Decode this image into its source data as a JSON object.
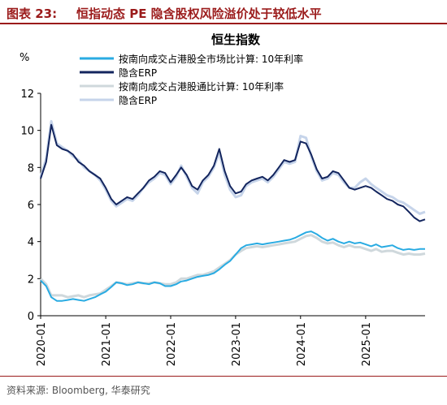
{
  "figure": {
    "label": "图表 23:",
    "title": "恒指动态 PE 隐含股权风险溢价处于较低水平",
    "source": "资料来源: Bloomberg, 华泰研究"
  },
  "chart_data": {
    "type": "line",
    "title": "恒生指数",
    "ylabel": "%",
    "ylim": [
      0,
      12
    ],
    "yticks": [
      0,
      2,
      4,
      6,
      8,
      10,
      12
    ],
    "xlim": [
      "2020-01-01",
      "2025-12-01"
    ],
    "xticks": [
      "2020-01",
      "2021-01",
      "2022-01",
      "2023-01",
      "2024-01",
      "2025-01"
    ],
    "grid": false,
    "legend": "top",
    "series": [
      {
        "name": "按南向成交占港股全市场比计算: 10年利率",
        "color": "#29abe2",
        "x": [
          "2020-01-01",
          "2020-02-01",
          "2020-03-01",
          "2020-04-01",
          "2020-05-01",
          "2020-06-01",
          "2020-07-01",
          "2020-08-01",
          "2020-09-01",
          "2020-10-01",
          "2020-11-01",
          "2020-12-01",
          "2021-01-01",
          "2021-02-01",
          "2021-03-01",
          "2021-04-01",
          "2021-05-01",
          "2021-06-01",
          "2021-07-01",
          "2021-08-01",
          "2021-09-01",
          "2021-10-01",
          "2021-11-01",
          "2021-12-01",
          "2022-01-01",
          "2022-02-01",
          "2022-03-01",
          "2022-04-01",
          "2022-05-01",
          "2022-06-01",
          "2022-07-01",
          "2022-08-01",
          "2022-09-01",
          "2022-10-01",
          "2022-11-01",
          "2022-12-01",
          "2023-01-01",
          "2023-02-01",
          "2023-03-01",
          "2023-04-01",
          "2023-05-01",
          "2023-06-01",
          "2023-07-01",
          "2023-08-01",
          "2023-09-01",
          "2023-10-01",
          "2023-11-01",
          "2023-12-01",
          "2024-01-01",
          "2024-02-01",
          "2024-03-01",
          "2024-04-01",
          "2024-05-01",
          "2024-06-01",
          "2024-07-01",
          "2024-08-01",
          "2024-09-01",
          "2024-10-01",
          "2024-11-01",
          "2024-12-01",
          "2025-01-01",
          "2025-02-01",
          "2025-03-01",
          "2025-04-01",
          "2025-05-01",
          "2025-06-01",
          "2025-07-01",
          "2025-08-01",
          "2025-09-01",
          "2025-10-01",
          "2025-11-01",
          "2025-12-01"
        ],
        "values": [
          1.9,
          1.6,
          1.0,
          0.8,
          0.8,
          0.85,
          0.9,
          0.85,
          0.8,
          0.9,
          1.0,
          1.15,
          1.3,
          1.55,
          1.8,
          1.75,
          1.65,
          1.7,
          1.8,
          1.75,
          1.7,
          1.8,
          1.75,
          1.6,
          1.6,
          1.7,
          1.85,
          1.9,
          2.0,
          2.1,
          2.15,
          2.2,
          2.3,
          2.5,
          2.75,
          2.95,
          3.3,
          3.65,
          3.8,
          3.85,
          3.9,
          3.85,
          3.9,
          3.95,
          4.0,
          4.05,
          4.1,
          4.2,
          4.35,
          4.5,
          4.55,
          4.4,
          4.2,
          4.05,
          4.15,
          4.0,
          3.9,
          4.0,
          3.9,
          3.95,
          3.85,
          3.75,
          3.85,
          3.7,
          3.75,
          3.8,
          3.65,
          3.55,
          3.6,
          3.55,
          3.6,
          3.6
        ]
      },
      {
        "name": "隐含ERP",
        "color": "#13255e",
        "x": [
          "2020-01-01",
          "2020-02-01",
          "2020-03-01",
          "2020-04-01",
          "2020-05-01",
          "2020-06-01",
          "2020-07-01",
          "2020-08-01",
          "2020-09-01",
          "2020-10-01",
          "2020-11-01",
          "2020-12-01",
          "2021-01-01",
          "2021-02-01",
          "2021-03-01",
          "2021-04-01",
          "2021-05-01",
          "2021-06-01",
          "2021-07-01",
          "2021-08-01",
          "2021-09-01",
          "2021-10-01",
          "2021-11-01",
          "2021-12-01",
          "2022-01-01",
          "2022-02-01",
          "2022-03-01",
          "2022-04-01",
          "2022-05-01",
          "2022-06-01",
          "2022-07-01",
          "2022-08-01",
          "2022-09-01",
          "2022-10-01",
          "2022-11-01",
          "2022-12-01",
          "2023-01-01",
          "2023-02-01",
          "2023-03-01",
          "2023-04-01",
          "2023-05-01",
          "2023-06-01",
          "2023-07-01",
          "2023-08-01",
          "2023-09-01",
          "2023-10-01",
          "2023-11-01",
          "2023-12-01",
          "2024-01-01",
          "2024-02-01",
          "2024-03-01",
          "2024-04-01",
          "2024-05-01",
          "2024-06-01",
          "2024-07-01",
          "2024-08-01",
          "2024-09-01",
          "2024-10-01",
          "2024-11-01",
          "2024-12-01",
          "2025-01-01",
          "2025-02-01",
          "2025-03-01",
          "2025-04-01",
          "2025-05-01",
          "2025-06-01",
          "2025-07-01",
          "2025-08-01",
          "2025-09-01",
          "2025-10-01",
          "2025-11-01",
          "2025-12-01"
        ],
        "values": [
          7.4,
          8.3,
          10.3,
          9.2,
          9.0,
          8.9,
          8.7,
          8.3,
          8.1,
          7.8,
          7.6,
          7.4,
          6.9,
          6.3,
          6.0,
          6.2,
          6.4,
          6.3,
          6.6,
          6.9,
          7.3,
          7.5,
          7.8,
          7.7,
          7.2,
          7.6,
          8.0,
          7.6,
          7.0,
          6.8,
          7.3,
          7.6,
          8.1,
          9.0,
          7.8,
          7.0,
          6.6,
          6.7,
          7.1,
          7.3,
          7.4,
          7.5,
          7.3,
          7.6,
          8.0,
          8.4,
          8.3,
          8.4,
          9.4,
          9.3,
          8.7,
          7.9,
          7.4,
          7.5,
          7.8,
          7.7,
          7.3,
          6.9,
          6.8,
          6.9,
          7.0,
          6.9,
          6.7,
          6.5,
          6.3,
          6.2,
          6.0,
          5.9,
          5.6,
          5.3,
          5.1,
          5.2
        ]
      },
      {
        "name": "按南向成交占港股通比计算: 10年利率",
        "color": "#cfd8dc",
        "x": [
          "2020-01-01",
          "2020-02-01",
          "2020-03-01",
          "2020-04-01",
          "2020-05-01",
          "2020-06-01",
          "2020-07-01",
          "2020-08-01",
          "2020-09-01",
          "2020-10-01",
          "2020-11-01",
          "2020-12-01",
          "2021-01-01",
          "2021-02-01",
          "2021-03-01",
          "2021-04-01",
          "2021-05-01",
          "2021-06-01",
          "2021-07-01",
          "2021-08-01",
          "2021-09-01",
          "2021-10-01",
          "2021-11-01",
          "2021-12-01",
          "2022-01-01",
          "2022-02-01",
          "2022-03-01",
          "2022-04-01",
          "2022-05-01",
          "2022-06-01",
          "2022-07-01",
          "2022-08-01",
          "2022-09-01",
          "2022-10-01",
          "2022-11-01",
          "2022-12-01",
          "2023-01-01",
          "2023-02-01",
          "2023-03-01",
          "2023-04-01",
          "2023-05-01",
          "2023-06-01",
          "2023-07-01",
          "2023-08-01",
          "2023-09-01",
          "2023-10-01",
          "2023-11-01",
          "2023-12-01",
          "2024-01-01",
          "2024-02-01",
          "2024-03-01",
          "2024-04-01",
          "2024-05-01",
          "2024-06-01",
          "2024-07-01",
          "2024-08-01",
          "2024-09-01",
          "2024-10-01",
          "2024-11-01",
          "2024-12-01",
          "2025-01-01",
          "2025-02-01",
          "2025-03-01",
          "2025-04-01",
          "2025-05-01",
          "2025-06-01",
          "2025-07-01",
          "2025-08-01",
          "2025-09-01",
          "2025-10-01",
          "2025-11-01",
          "2025-12-01"
        ],
        "values": [
          2.0,
          1.7,
          1.1,
          1.1,
          1.1,
          1.0,
          1.05,
          1.1,
          1.0,
          1.1,
          1.15,
          1.2,
          1.4,
          1.6,
          1.8,
          1.75,
          1.7,
          1.75,
          1.8,
          1.75,
          1.75,
          1.8,
          1.75,
          1.7,
          1.7,
          1.8,
          2.0,
          2.0,
          2.1,
          2.2,
          2.2,
          2.3,
          2.4,
          2.6,
          2.8,
          3.0,
          3.3,
          3.5,
          3.65,
          3.7,
          3.75,
          3.7,
          3.75,
          3.8,
          3.85,
          3.9,
          3.95,
          4.0,
          4.15,
          4.3,
          4.35,
          4.2,
          4.0,
          3.9,
          3.95,
          3.8,
          3.7,
          3.8,
          3.7,
          3.7,
          3.6,
          3.5,
          3.6,
          3.45,
          3.5,
          3.5,
          3.4,
          3.3,
          3.35,
          3.3,
          3.3,
          3.35
        ]
      },
      {
        "name": "隐含ERP",
        "color": "#c6d4ea",
        "x": [
          "2020-01-01",
          "2020-02-01",
          "2020-03-01",
          "2020-04-01",
          "2020-05-01",
          "2020-06-01",
          "2020-07-01",
          "2020-08-01",
          "2020-09-01",
          "2020-10-01",
          "2020-11-01",
          "2020-12-01",
          "2021-01-01",
          "2021-02-01",
          "2021-03-01",
          "2021-04-01",
          "2021-05-01",
          "2021-06-01",
          "2021-07-01",
          "2021-08-01",
          "2021-09-01",
          "2021-10-01",
          "2021-11-01",
          "2021-12-01",
          "2022-01-01",
          "2022-02-01",
          "2022-03-01",
          "2022-04-01",
          "2022-05-01",
          "2022-06-01",
          "2022-07-01",
          "2022-08-01",
          "2022-09-01",
          "2022-10-01",
          "2022-11-01",
          "2022-12-01",
          "2023-01-01",
          "2023-02-01",
          "2023-03-01",
          "2023-04-01",
          "2023-05-01",
          "2023-06-01",
          "2023-07-01",
          "2023-08-01",
          "2023-09-01",
          "2023-10-01",
          "2023-11-01",
          "2023-12-01",
          "2024-01-01",
          "2024-02-01",
          "2024-03-01",
          "2024-04-01",
          "2024-05-01",
          "2024-06-01",
          "2024-07-01",
          "2024-08-01",
          "2024-09-01",
          "2024-10-01",
          "2024-11-01",
          "2024-12-01",
          "2025-01-01",
          "2025-02-01",
          "2025-03-01",
          "2025-04-01",
          "2025-05-01",
          "2025-06-01",
          "2025-07-01",
          "2025-08-01",
          "2025-09-01",
          "2025-10-01",
          "2025-11-01",
          "2025-12-01"
        ],
        "values": [
          7.5,
          8.5,
          10.5,
          9.3,
          9.1,
          8.9,
          8.6,
          8.4,
          8.0,
          7.8,
          7.6,
          7.3,
          6.8,
          6.2,
          5.9,
          6.1,
          6.3,
          6.2,
          6.5,
          6.9,
          7.2,
          7.4,
          7.7,
          7.6,
          7.1,
          7.5,
          8.1,
          7.5,
          6.9,
          6.6,
          7.2,
          7.5,
          8.0,
          8.8,
          7.6,
          6.8,
          6.4,
          6.5,
          7.0,
          7.2,
          7.3,
          7.4,
          7.2,
          7.5,
          7.9,
          8.3,
          8.2,
          8.3,
          9.7,
          9.6,
          8.6,
          7.8,
          7.3,
          7.4,
          7.7,
          7.6,
          7.2,
          6.9,
          6.9,
          7.2,
          7.4,
          7.1,
          6.9,
          6.7,
          6.5,
          6.4,
          6.2,
          6.1,
          5.9,
          5.7,
          5.5,
          5.6
        ]
      }
    ]
  }
}
